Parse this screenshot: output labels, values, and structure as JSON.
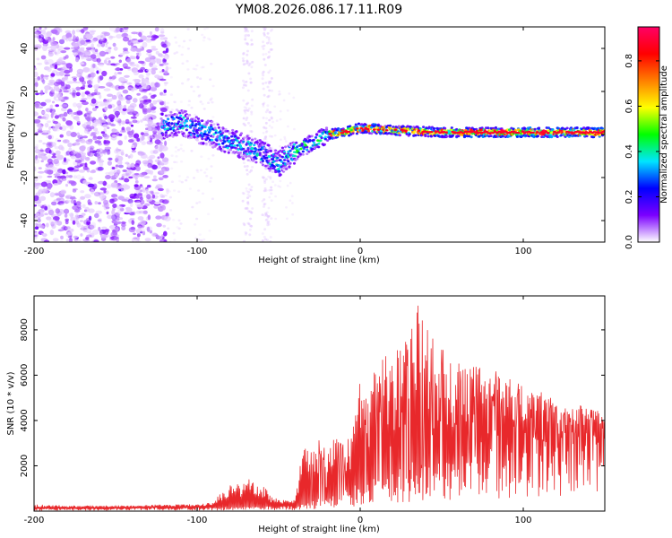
{
  "figure": {
    "title": "YM08.2026.086.17.11.R09"
  },
  "chart_data": [
    {
      "type": "heatmap",
      "name": "spectrogram",
      "title": "YM08.2026.086.17.11.R09",
      "xlabel": "Height of straight line (km)",
      "ylabel": "Frequency (Hz)",
      "xlim": [
        -200,
        150
      ],
      "ylim": [
        -50,
        50
      ],
      "xticks": [
        -200,
        -100,
        0,
        100
      ],
      "yticks": [
        -40,
        -20,
        0,
        20,
        40
      ],
      "colorbar": {
        "label": "Normalized spectral amplitude",
        "range": [
          0.0,
          0.95
        ],
        "ticks": [
          0.0,
          0.2,
          0.4,
          0.6,
          0.8
        ],
        "colormap": [
          "#ffffff",
          "#7b00ff",
          "#0000ff",
          "#00e5ff",
          "#00ff00",
          "#ffff00",
          "#ff7f00",
          "#ff0000",
          "#ff0066"
        ]
      },
      "ridge": {
        "description_points_x": [
          -120,
          -110,
          -100,
          -90,
          -80,
          -70,
          -60,
          -50,
          -45,
          -40,
          -30,
          -20,
          -10,
          0,
          20,
          50,
          100,
          150
        ],
        "description_points_y": [
          4,
          6,
          2,
          0,
          -3,
          -6,
          -9,
          -14,
          -10,
          -8,
          -4,
          0,
          1,
          3,
          2,
          1,
          1,
          1
        ]
      }
    },
    {
      "type": "line",
      "name": "snr",
      "xlabel": "Height of straight line (km)",
      "ylabel": "SNR (10 * v/v)",
      "xlim": [
        -200,
        150
      ],
      "ylim": [
        0,
        9500
      ],
      "xticks": [
        -200,
        -100,
        0,
        100
      ],
      "yticks": [
        2000,
        4000,
        6000,
        8000
      ],
      "color": "#e8282b",
      "envelope": {
        "x": [
          -200,
          -180,
          -160,
          -140,
          -120,
          -100,
          -90,
          -85,
          -80,
          -75,
          -70,
          -65,
          -60,
          -55,
          -50,
          -45,
          -40,
          -37,
          -35,
          -30,
          -25,
          -20,
          -15,
          -10,
          -5,
          0,
          5,
          10,
          15,
          20,
          25,
          30,
          35,
          40,
          45,
          50,
          55,
          60,
          65,
          70,
          80,
          90,
          100,
          110,
          120,
          130,
          140,
          150
        ],
        "y": [
          300,
          250,
          250,
          250,
          300,
          300,
          400,
          900,
          1200,
          1300,
          1500,
          1400,
          1200,
          700,
          500,
          500,
          500,
          2000,
          2900,
          2600,
          3200,
          3000,
          3400,
          3200,
          3500,
          5800,
          5500,
          6500,
          7000,
          6800,
          7500,
          8000,
          9400,
          8000,
          8200,
          7200,
          6800,
          7000,
          6500,
          6400,
          6300,
          6000,
          5700,
          5300,
          5000,
          4700,
          4600,
          4300
        ]
      },
      "baseline": {
        "x": [
          -200,
          -100,
          -40,
          -30,
          -10,
          0,
          20,
          40,
          60,
          80,
          100,
          150
        ],
        "y": [
          100,
          150,
          200,
          400,
          800,
          1200,
          1500,
          1800,
          2200,
          2600,
          3000,
          3300
        ]
      }
    }
  ]
}
